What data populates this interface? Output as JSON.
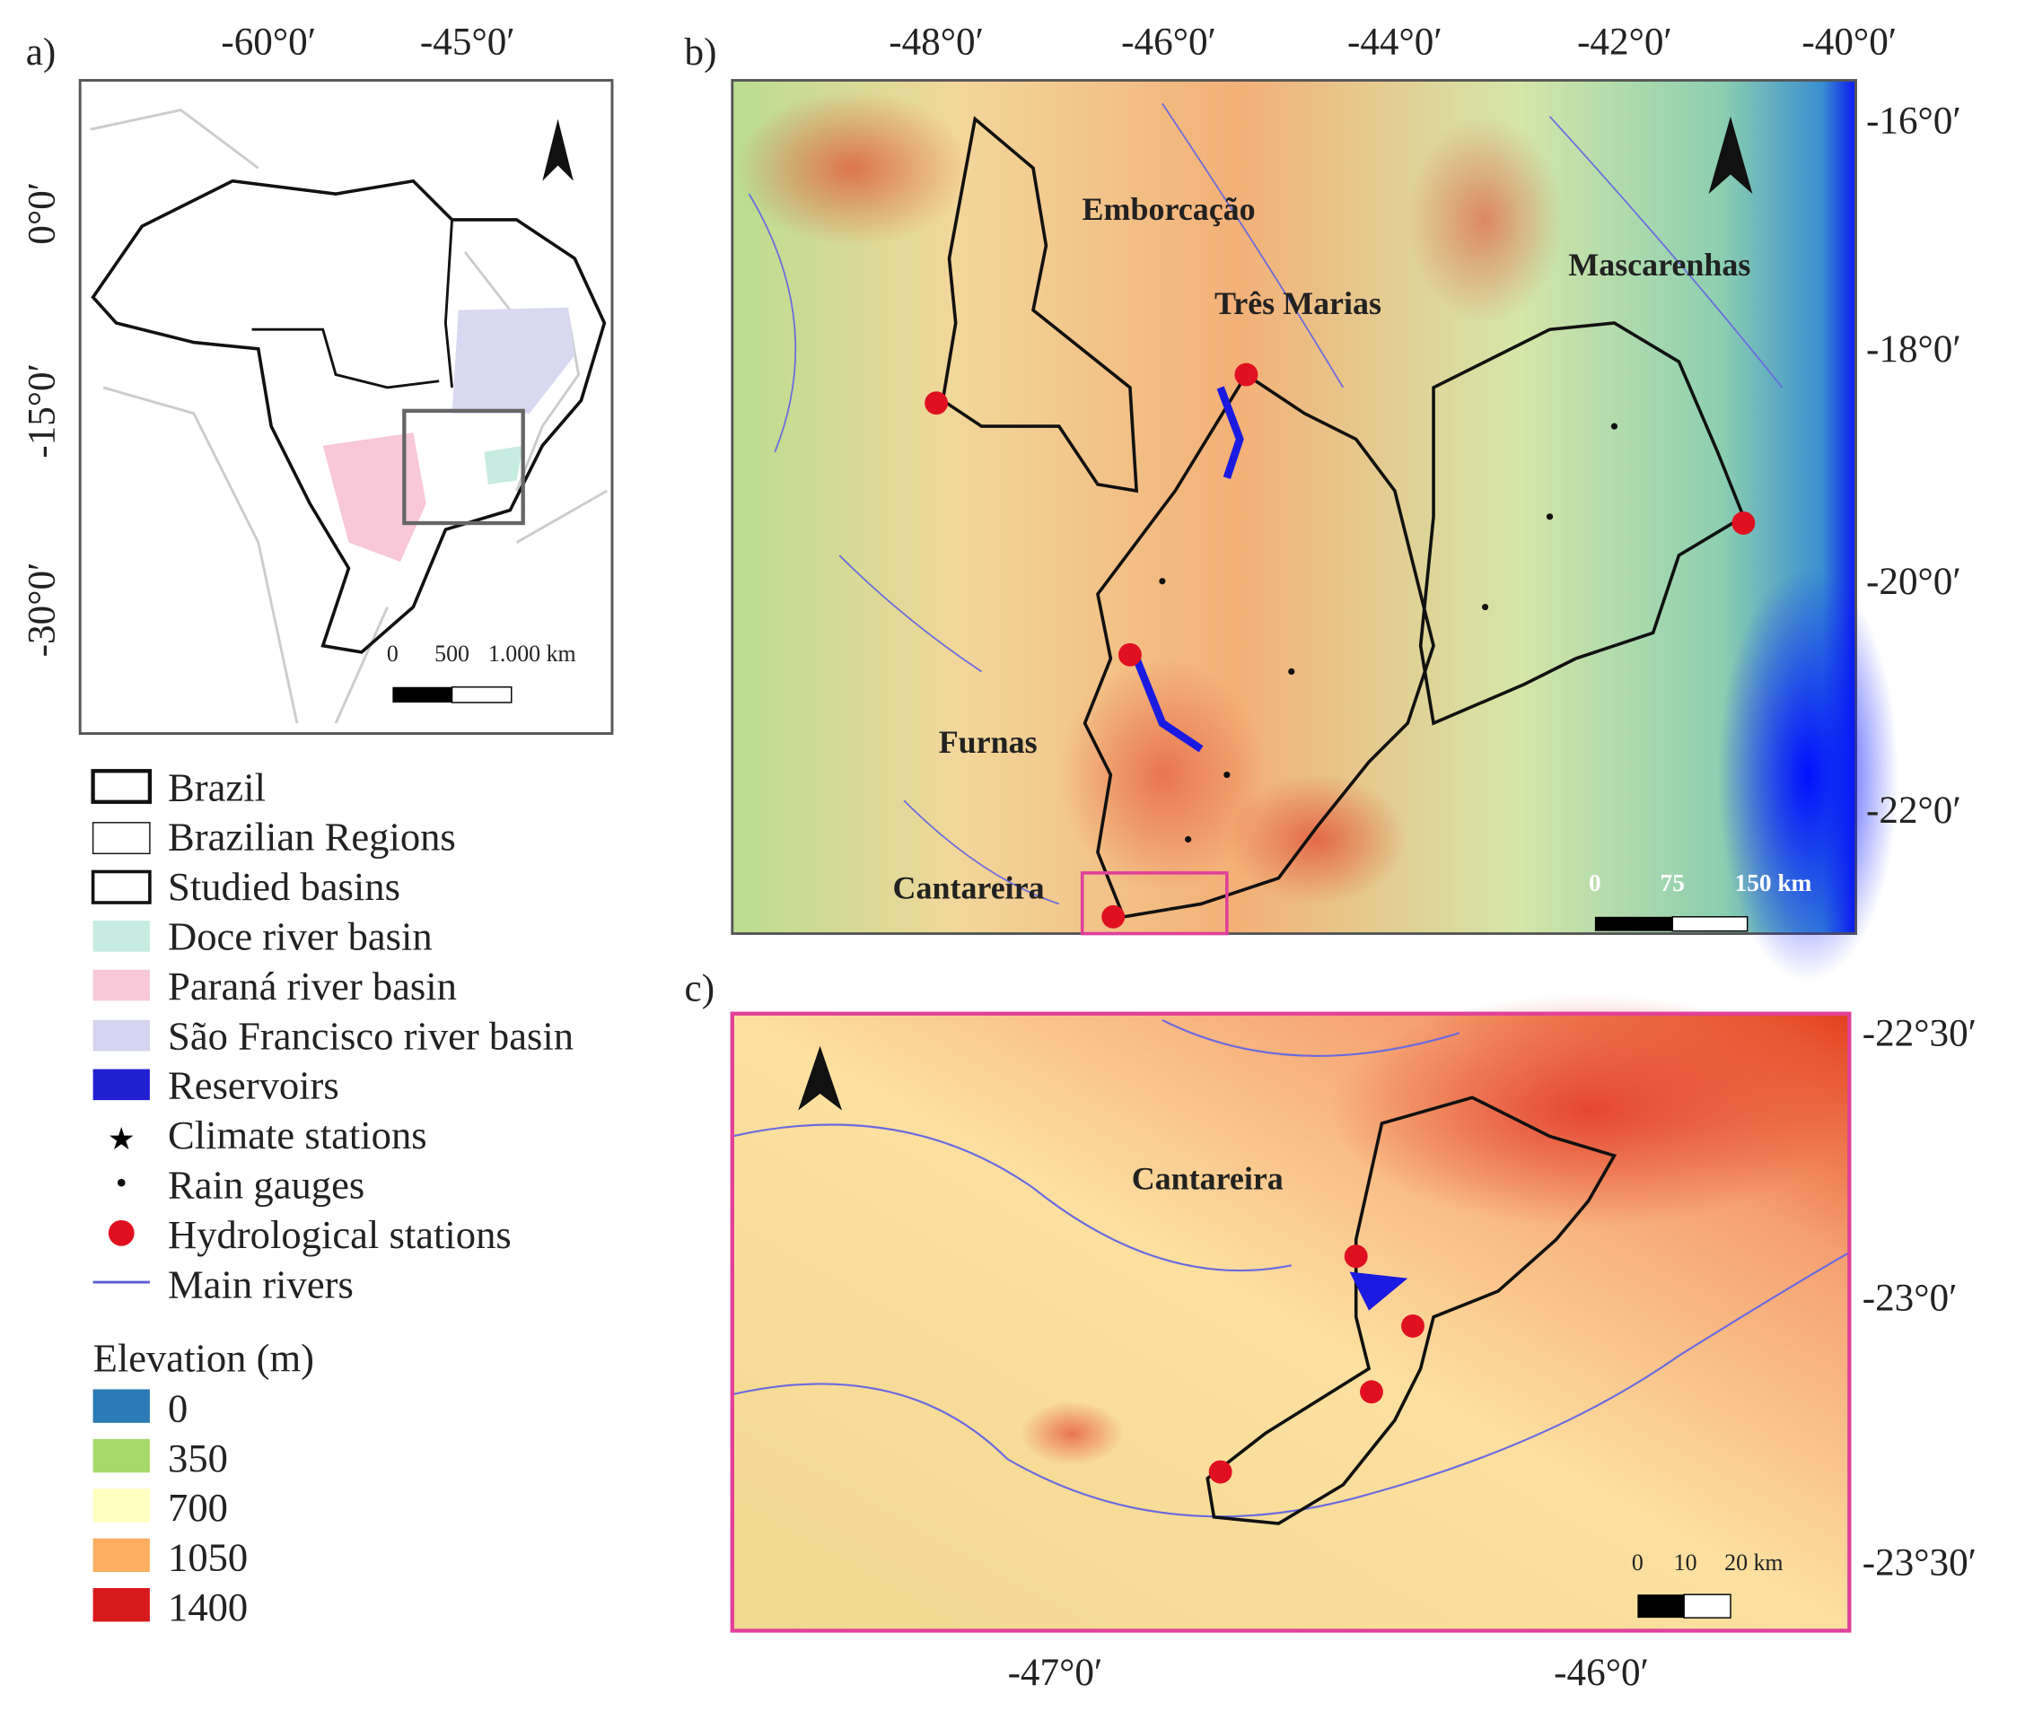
{
  "panels": [
    {
      "label": "a)",
      "x_ticks": [
        "-60°0′",
        "-45°0′"
      ],
      "y_ticks": [
        "0°0′",
        "-15°0′",
        "-30°0′"
      ],
      "scale_bar": [
        "0",
        "500",
        "1.000 km"
      ]
    },
    {
      "label": "b)",
      "x_ticks": [
        "-48°0′",
        "-46°0′",
        "-44°0′",
        "-42°0′",
        "-40°0′"
      ],
      "y_ticks": [
        "-16°0′",
        "-18°0′",
        "-20°0′",
        "-22°0′"
      ],
      "places": [
        "Emborcação",
        "Três Marias",
        "Mascarenhas",
        "Furnas",
        "Cantareira"
      ],
      "scale_bar": [
        "0",
        "75",
        "150 km"
      ]
    },
    {
      "label": "c)",
      "x_ticks": [
        "-47°0′",
        "-46°0′"
      ],
      "y_ticks": [
        "-22°30′",
        "-23°0′",
        "-23°30′"
      ],
      "places": [
        "Cantareira"
      ],
      "scale_bar": [
        "0",
        "10",
        "20 km"
      ]
    }
  ],
  "legend": {
    "items": [
      "Brazil",
      "Brazilian Regions",
      "Studied basins",
      "Doce river basin",
      "Paraná river basin",
      "São Francisco river basin",
      "Reservoirs",
      "Climate stations",
      "Rain gauges",
      "Hydrological stations",
      "Main rivers"
    ],
    "elevation": {
      "title": "Elevation (m)",
      "classes": [
        {
          "value": 0,
          "color": "#2c7bb6"
        },
        {
          "value": 350,
          "color": "#a6d96a"
        },
        {
          "value": 700,
          "color": "#ffffbf"
        },
        {
          "value": 1050,
          "color": "#fdae61"
        },
        {
          "value": 1400,
          "color": "#d7191c"
        }
      ]
    }
  }
}
